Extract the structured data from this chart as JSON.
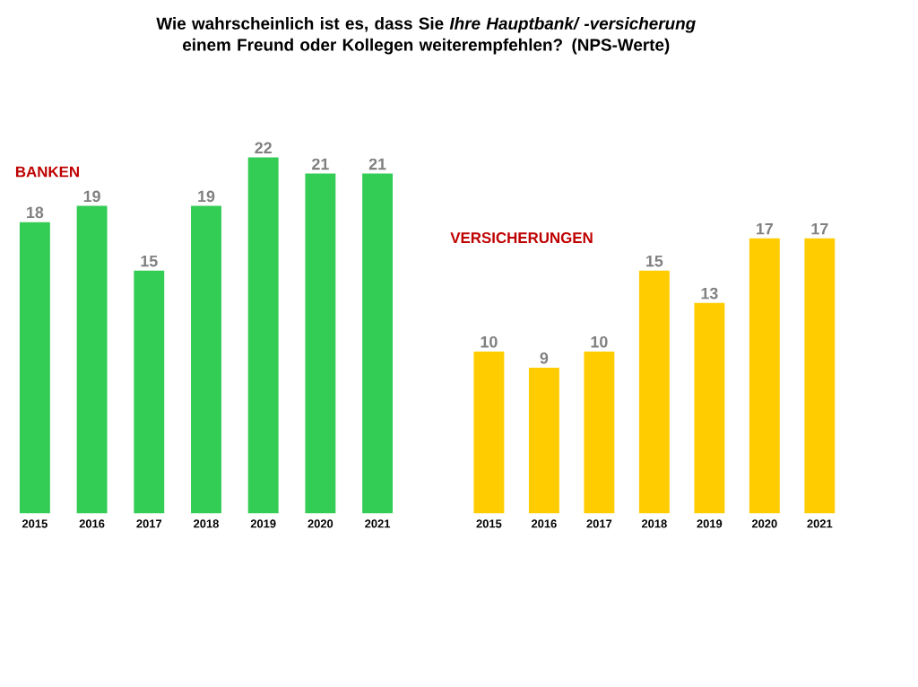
{
  "chart_data": [
    {
      "type": "bar",
      "title": "Wie wahrscheinlich ist es, dass Sie *Ihre Hauptbank/ -versicherung* einem Freund oder Kollegen weiterempfehlen? (NPS-Werte)",
      "annotations": [
        "BANKEN"
      ],
      "categories": [
        "2015",
        "2016",
        "2017",
        "2018",
        "2019",
        "2020",
        "2021"
      ],
      "values": [
        18,
        19,
        15,
        19,
        22,
        21,
        21
      ],
      "color": "#33cc55",
      "data_labels": true,
      "tick_labels": "x"
    },
    {
      "type": "bar",
      "annotations": [
        "VERSICHERUNGEN"
      ],
      "categories": [
        "2015",
        "2016",
        "2017",
        "2018",
        "2019",
        "2020",
        "2021"
      ],
      "values": [
        10,
        9,
        10,
        15,
        13,
        17,
        17
      ],
      "color": "#ffcc00",
      "data_labels": true,
      "tick_labels": "x"
    }
  ]
}
